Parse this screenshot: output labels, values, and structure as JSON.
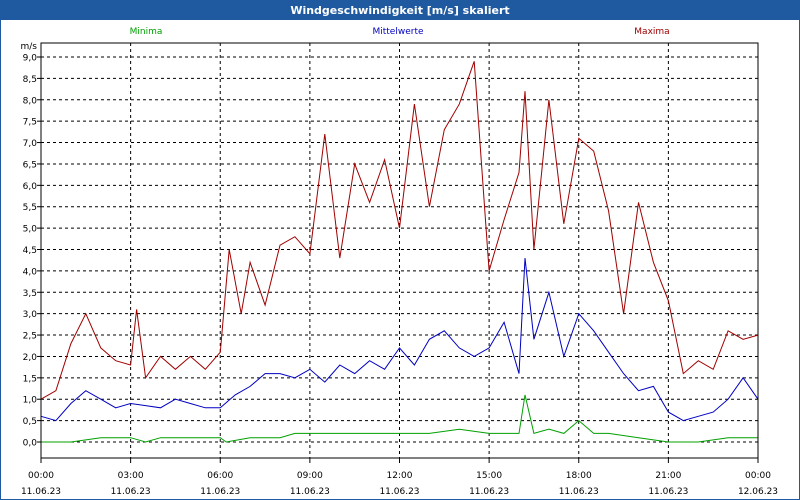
{
  "window": {
    "title": "Windgeschwindigkeit [m/s] skaliert"
  },
  "colors": {
    "minima": "#00a000",
    "mittel": "#0000c0",
    "maxima": "#a00000",
    "titlebar": "#1f5aa0"
  },
  "chart_data": {
    "type": "line",
    "title": "Windgeschwindigkeit [m/s] skaliert",
    "ylabel": "m/s",
    "ylim": [
      0,
      9.0
    ],
    "y_ticks": [
      "0,0",
      "0,5",
      "1,0",
      "1,5",
      "2,0",
      "2,5",
      "3,0",
      "3,5",
      "4,0",
      "4,5",
      "5,0",
      "5,5",
      "6,0",
      "6,5",
      "7,0",
      "7,5",
      "8,0",
      "8,5",
      "9,0"
    ],
    "x_range_hours": [
      0,
      24
    ],
    "x_ticks": [
      {
        "time": "00:00",
        "date": "11.06.23"
      },
      {
        "time": "03:00",
        "date": "11.06.23"
      },
      {
        "time": "06:00",
        "date": "11.06.23"
      },
      {
        "time": "09:00",
        "date": "11.06.23"
      },
      {
        "time": "12:00",
        "date": "11.06.23"
      },
      {
        "time": "15:00",
        "date": "11.06.23"
      },
      {
        "time": "18:00",
        "date": "11.06.23"
      },
      {
        "time": "21:00",
        "date": "11.06.23"
      },
      {
        "time": "00:00",
        "date": "12.06.23"
      }
    ],
    "grid": true,
    "legend_placement": "top",
    "series": [
      {
        "name": "Minima",
        "x": [
          0,
          1,
          2,
          3,
          3.5,
          4,
          5,
          6,
          6.2,
          7,
          8,
          8.5,
          9,
          10,
          11,
          12,
          13,
          14,
          15,
          15.5,
          16,
          16.2,
          16.5,
          17,
          17.5,
          18,
          18.5,
          19,
          20,
          21,
          22,
          23,
          24
        ],
        "y": [
          0,
          0,
          0.1,
          0.1,
          0,
          0.1,
          0.1,
          0.1,
          0,
          0.1,
          0.1,
          0.2,
          0.2,
          0.2,
          0.2,
          0.2,
          0.2,
          0.3,
          0.2,
          0.2,
          0.2,
          1.1,
          0.2,
          0.3,
          0.2,
          0.5,
          0.2,
          0.2,
          0.1,
          0,
          0,
          0.1,
          0.1
        ]
      },
      {
        "name": "Mittelwerte",
        "x": [
          0,
          0.5,
          1,
          1.5,
          2,
          2.5,
          3,
          3.5,
          4,
          4.5,
          5,
          5.5,
          6,
          6.5,
          7,
          7.5,
          8,
          8.5,
          9,
          9.5,
          10,
          10.5,
          11,
          11.5,
          12,
          12.5,
          13,
          13.5,
          14,
          14.5,
          15,
          15.5,
          16,
          16.2,
          16.5,
          17,
          17.5,
          18,
          18.5,
          19,
          19.5,
          20,
          20.5,
          21,
          21.5,
          22,
          22.5,
          23,
          23.5,
          24
        ],
        "y": [
          0.6,
          0.5,
          0.9,
          1.2,
          1.0,
          0.8,
          0.9,
          0.85,
          0.8,
          1.0,
          0.9,
          0.8,
          0.8,
          1.1,
          1.3,
          1.6,
          1.6,
          1.5,
          1.7,
          1.4,
          1.8,
          1.6,
          1.9,
          1.7,
          2.2,
          1.8,
          2.4,
          2.6,
          2.2,
          2.0,
          2.2,
          2.8,
          1.6,
          4.3,
          2.4,
          3.5,
          2.0,
          3.0,
          2.6,
          2.1,
          1.6,
          1.2,
          1.3,
          0.7,
          0.5,
          0.6,
          0.7,
          1.0,
          1.5,
          1.0
        ]
      },
      {
        "name": "Maxima",
        "x": [
          0,
          0.5,
          1,
          1.5,
          2,
          2.5,
          3,
          3.2,
          3.5,
          4,
          4.5,
          5,
          5.5,
          6,
          6.3,
          6.7,
          7,
          7.5,
          8,
          8.5,
          9,
          9.5,
          10,
          10.5,
          11,
          11.5,
          12,
          12.5,
          13,
          13.5,
          14,
          14.5,
          15,
          15.5,
          16,
          16.2,
          16.5,
          17,
          17.5,
          18,
          18.5,
          19,
          19.5,
          20,
          20.5,
          21,
          21.5,
          22,
          22.5,
          23,
          23.5,
          24
        ],
        "y": [
          1.0,
          1.2,
          2.3,
          3.0,
          2.2,
          1.9,
          1.8,
          3.1,
          1.5,
          2.0,
          1.7,
          2.0,
          1.7,
          2.1,
          4.5,
          3.0,
          4.2,
          3.2,
          4.6,
          4.8,
          4.4,
          7.2,
          4.3,
          6.5,
          5.6,
          6.6,
          5.0,
          7.9,
          5.5,
          7.3,
          7.9,
          8.9,
          4.0,
          5.2,
          6.3,
          8.2,
          4.5,
          8.0,
          5.1,
          7.1,
          6.8,
          5.4,
          3.0,
          5.6,
          4.2,
          3.3,
          1.6,
          1.9,
          1.7,
          2.6,
          2.4,
          2.5
        ]
      }
    ]
  }
}
